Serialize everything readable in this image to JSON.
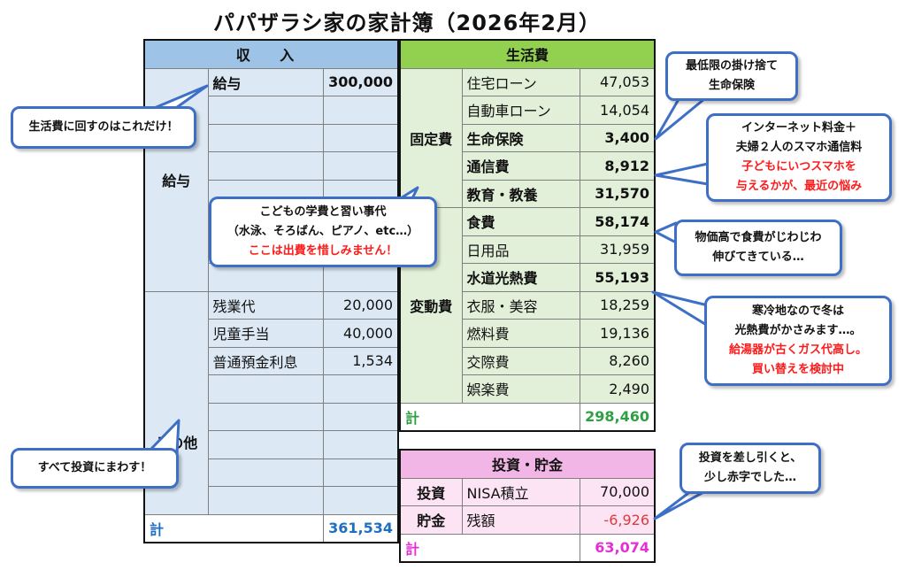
{
  "title": "パパザラシ家の家計簿（2026年2月）",
  "income": {
    "header": "収 入",
    "salary_group": "給与",
    "salary_rows": [
      {
        "label": "給与",
        "value": "300,000"
      },
      {
        "label": "",
        "value": ""
      },
      {
        "label": "",
        "value": ""
      },
      {
        "label": "",
        "value": ""
      },
      {
        "label": "",
        "value": ""
      },
      {
        "label": "",
        "value": ""
      },
      {
        "label": "",
        "value": ""
      },
      {
        "label": "",
        "value": ""
      }
    ],
    "other_group": "その他",
    "other_rows": [
      {
        "label": "残業代",
        "value": "20,000"
      },
      {
        "label": "児童手当",
        "value": "40,000"
      },
      {
        "label": "普通預金利息",
        "value": "1,534"
      },
      {
        "label": "",
        "value": ""
      },
      {
        "label": "",
        "value": ""
      },
      {
        "label": "",
        "value": ""
      },
      {
        "label": "",
        "value": ""
      },
      {
        "label": "",
        "value": ""
      }
    ],
    "total_label": "計",
    "total_value": "361,534"
  },
  "living": {
    "header": "生活費",
    "fixed_group": "固定費",
    "fixed_rows": [
      {
        "label": "住宅ローン",
        "value": "47,053"
      },
      {
        "label": "自動車ローン",
        "value": "14,054"
      },
      {
        "label": "生命保険",
        "value": "3,400"
      },
      {
        "label": "通信費",
        "value": "8,912"
      },
      {
        "label": "教育・教養",
        "value": "31,570"
      }
    ],
    "variable_group": "変動費",
    "variable_rows": [
      {
        "label": "食費",
        "value": "58,174"
      },
      {
        "label": "日用品",
        "value": "31,959"
      },
      {
        "label": "水道光熱費",
        "value": "55,193"
      },
      {
        "label": "衣服・美容",
        "value": "18,259"
      },
      {
        "label": "燃料費",
        "value": "19,136"
      },
      {
        "label": "交際費",
        "value": "8,260"
      },
      {
        "label": "娯楽費",
        "value": "2,490"
      }
    ],
    "total_label": "計",
    "total_value": "298,460"
  },
  "investment": {
    "header": "投資・貯金",
    "rows": [
      {
        "group": "投資",
        "label": "NISA積立",
        "value": "70,000"
      },
      {
        "group": "貯金",
        "label": "残額",
        "value": "-6,926"
      }
    ],
    "total_label": "計",
    "total_value": "63,074"
  },
  "notes": {
    "salary_note": "生活費に回すのはこれだけ！",
    "education_note": [
      "こどもの学費と習い事代",
      "（水泳、そろばん、ピアノ、etc…）",
      "ここは出費を惜しみません！"
    ],
    "invest_note": "すべて投資にまわす！",
    "insurance_note": [
      "最低限の掛け捨て",
      "生命保険"
    ],
    "phone_note": [
      "インターネット料金＋",
      "夫婦２人のスマホ通信料",
      "子どもにいつスマホを",
      "与えるかが、最近の悩み"
    ],
    "food_note": [
      "物価高で食費がじわじわ",
      "伸びてきている…"
    ],
    "utility_note": [
      "寒冷地なので冬は",
      "光熱費がかさみます…。",
      "給湯器が古くガス代高し。",
      "買い替えを検討中"
    ],
    "deficit_note": [
      "投資を差し引くと、",
      "少し赤字でした…"
    ]
  },
  "colors": {
    "income_header": "#9dc3e6",
    "income_cell": "#dce9f5",
    "living_header": "#92d050",
    "living_cell": "#e2f0d9",
    "invest_header": "#f2b6e6",
    "invest_cell": "#fce4f4",
    "bubble_border": "#3e6fc7",
    "highlight_red": "#ff1a1a"
  }
}
